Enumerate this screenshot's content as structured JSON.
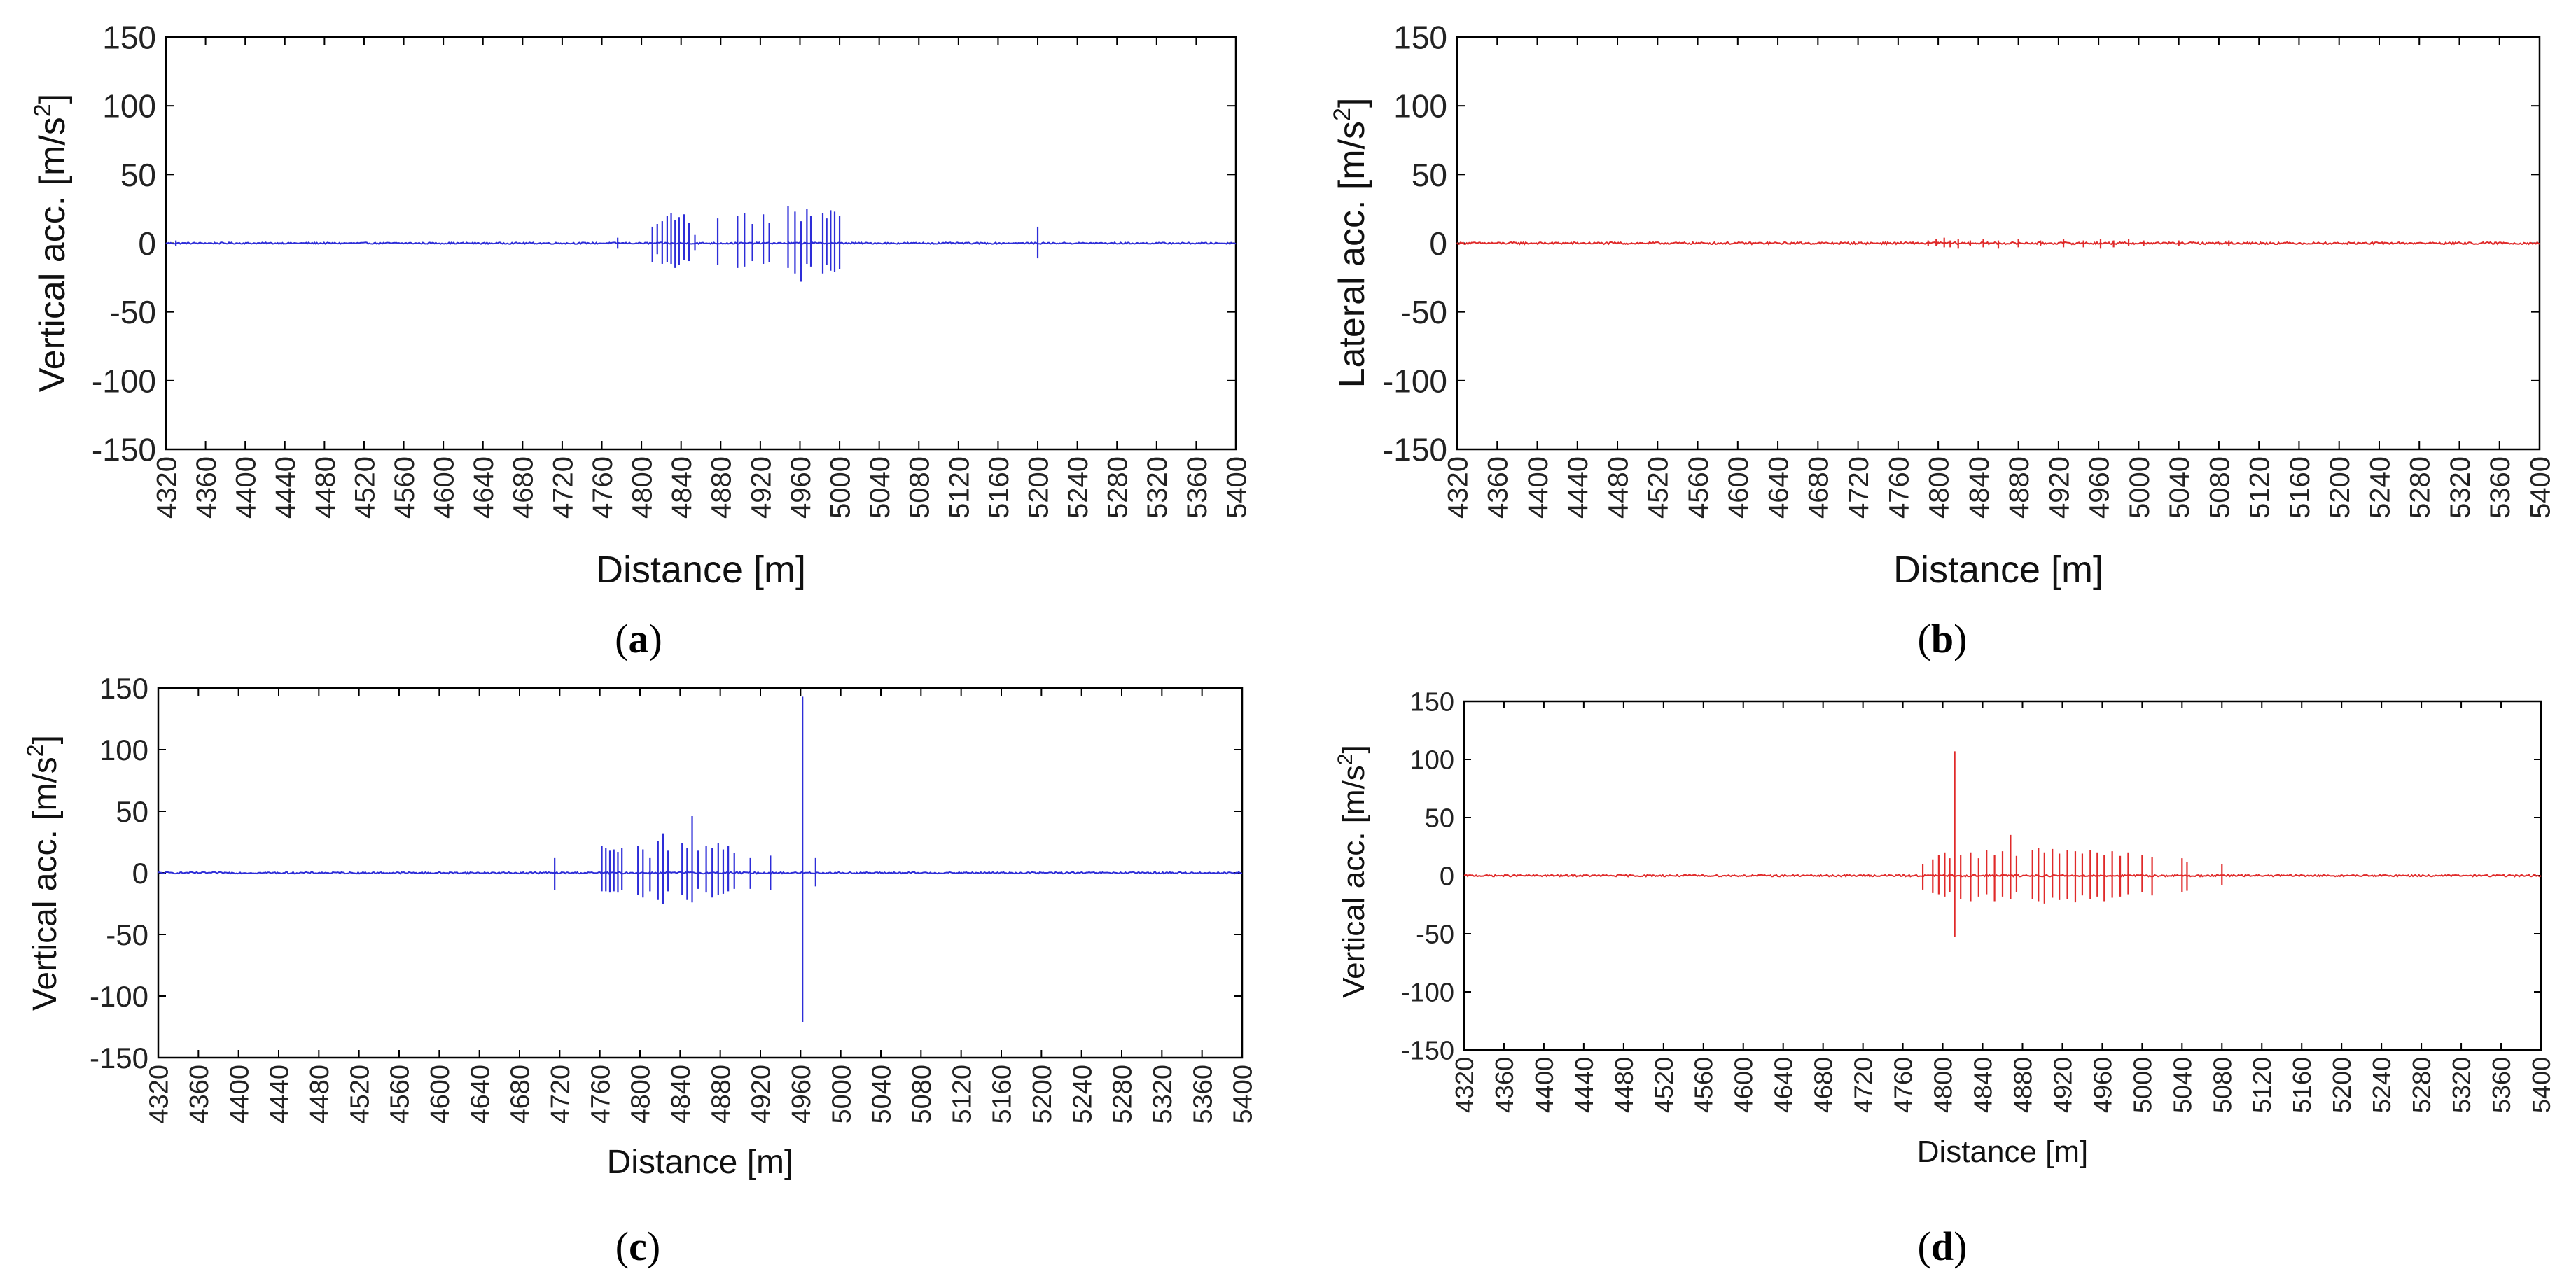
{
  "figure": {
    "panels": [
      "(a)",
      "(b)",
      "(c)",
      "(d)"
    ]
  },
  "chart_data": [
    {
      "id": "a",
      "type": "line",
      "panel_label": "(a)",
      "panel_letter": "a",
      "color": "#2d2dd8",
      "xlabel": "Distance [m]",
      "ylabel": "Vertical acc. [m/s2]",
      "ylabel_main": "Vertical acc. [m/s",
      "ylabel_sup": "2",
      "ylabel_end": "]",
      "xlim": [
        4320,
        5400
      ],
      "ylim": [
        -150,
        150
      ],
      "xticks": [
        "4320",
        "4360",
        "4400",
        "4440",
        "4480",
        "4520",
        "4560",
        "4600",
        "4640",
        "4680",
        "4720",
        "4760",
        "4800",
        "4840",
        "4880",
        "4920",
        "4960",
        "5000",
        "5040",
        "5080",
        "5120",
        "5160",
        "5200",
        "5240",
        "5280",
        "5320",
        "5360",
        "5400"
      ],
      "yticks": [
        "150",
        "100",
        "50",
        "0",
        "-50",
        "-100",
        "-150"
      ],
      "baseline_noise": 0.6,
      "spikes": [
        {
          "x": 4330,
          "max": 2,
          "min": -2
        },
        {
          "x": 4776,
          "max": 4,
          "min": -4
        },
        {
          "x": 4811,
          "max": 12,
          "min": -14
        },
        {
          "x": 4816,
          "max": 14,
          "min": -8
        },
        {
          "x": 4821,
          "max": 16,
          "min": -15
        },
        {
          "x": 4826,
          "max": 20,
          "min": -14
        },
        {
          "x": 4830,
          "max": 22,
          "min": -15
        },
        {
          "x": 4834,
          "max": 17,
          "min": -18
        },
        {
          "x": 4838,
          "max": 19,
          "min": -16
        },
        {
          "x": 4843,
          "max": 21,
          "min": -12
        },
        {
          "x": 4848,
          "max": 15,
          "min": -13
        },
        {
          "x": 4854,
          "max": 6,
          "min": -5
        },
        {
          "x": 4877,
          "max": 18,
          "min": -16
        },
        {
          "x": 4897,
          "max": 20,
          "min": -18
        },
        {
          "x": 4904,
          "max": 22,
          "min": -17
        },
        {
          "x": 4912,
          "max": 14,
          "min": -13
        },
        {
          "x": 4923,
          "max": 21,
          "min": -15
        },
        {
          "x": 4929,
          "max": 15,
          "min": -14
        },
        {
          "x": 4948,
          "max": 27,
          "min": -18
        },
        {
          "x": 4955,
          "max": 23,
          "min": -22
        },
        {
          "x": 4961,
          "max": 16,
          "min": -28
        },
        {
          "x": 4967,
          "max": 25,
          "min": -15
        },
        {
          "x": 4971,
          "max": 20,
          "min": -17
        },
        {
          "x": 4983,
          "max": 22,
          "min": -22
        },
        {
          "x": 4987,
          "max": 18,
          "min": -16
        },
        {
          "x": 4991,
          "max": 24,
          "min": -20
        },
        {
          "x": 4995,
          "max": 23,
          "min": -21
        },
        {
          "x": 5000,
          "max": 20,
          "min": -19
        },
        {
          "x": 5200,
          "max": 12,
          "min": -11
        }
      ]
    },
    {
      "id": "b",
      "type": "line",
      "panel_label": "(b)",
      "panel_letter": "b",
      "color": "#e02a2a",
      "xlabel": "Distance [m]",
      "ylabel": "Lateral acc. [m/s2]",
      "ylabel_main": "Lateral acc. [m/s",
      "ylabel_sup": "2",
      "ylabel_end": "]",
      "xlim": [
        4320,
        5400
      ],
      "ylim": [
        -150,
        150
      ],
      "xticks": [
        "4320",
        "4360",
        "4400",
        "4440",
        "4480",
        "4520",
        "4560",
        "4600",
        "4640",
        "4680",
        "4720",
        "4760",
        "4800",
        "4840",
        "4880",
        "4920",
        "4960",
        "5000",
        "5040",
        "5080",
        "5120",
        "5160",
        "5200",
        "5240",
        "5280",
        "5320",
        "5360",
        "5400"
      ],
      "yticks": [
        "150",
        "100",
        "50",
        "0",
        "-50",
        "-100",
        "-150"
      ],
      "baseline_noise": 0.8,
      "spikes": [
        {
          "x": 4790,
          "max": 2,
          "min": -2
        },
        {
          "x": 4798,
          "max": 3,
          "min": -2
        },
        {
          "x": 4806,
          "max": 4,
          "min": -3
        },
        {
          "x": 4812,
          "max": 2,
          "min": -3
        },
        {
          "x": 4820,
          "max": 3,
          "min": -4
        },
        {
          "x": 4832,
          "max": 2,
          "min": -2
        },
        {
          "x": 4845,
          "max": 3,
          "min": -3
        },
        {
          "x": 4860,
          "max": 2,
          "min": -4
        },
        {
          "x": 4880,
          "max": 3,
          "min": -3
        },
        {
          "x": 4902,
          "max": 2,
          "min": -2
        },
        {
          "x": 4925,
          "max": 3,
          "min": -3
        },
        {
          "x": 4945,
          "max": 2,
          "min": -3
        },
        {
          "x": 4962,
          "max": 3,
          "min": -4
        },
        {
          "x": 4975,
          "max": 2,
          "min": -3
        },
        {
          "x": 4990,
          "max": 3,
          "min": -2
        },
        {
          "x": 5005,
          "max": 2,
          "min": -2
        },
        {
          "x": 5040,
          "max": 2,
          "min": -2
        },
        {
          "x": 5090,
          "max": 2,
          "min": -2
        }
      ]
    },
    {
      "id": "c",
      "type": "line",
      "panel_label": "(c)",
      "panel_letter": "c",
      "color": "#2d2dd8",
      "xlabel": "Distance [m]",
      "ylabel": "Vertical acc. [m/s2]",
      "ylabel_main": "Vertical acc. [m/s",
      "ylabel_sup": "2",
      "ylabel_end": "]",
      "xlim": [
        4320,
        5400
      ],
      "ylim": [
        -150,
        150
      ],
      "xticks": [
        "4320",
        "4360",
        "4400",
        "4440",
        "4480",
        "4520",
        "4560",
        "4600",
        "4640",
        "4680",
        "4720",
        "4760",
        "4800",
        "4840",
        "4880",
        "4920",
        "4960",
        "5000",
        "5040",
        "5080",
        "5120",
        "5160",
        "5200",
        "5240",
        "5280",
        "5320",
        "5360",
        "5400"
      ],
      "yticks": [
        "150",
        "100",
        "50",
        "0",
        "-50",
        "-100",
        "-150"
      ],
      "baseline_noise": 0.7,
      "spikes": [
        {
          "x": 4715,
          "max": 12,
          "min": -14
        },
        {
          "x": 4762,
          "max": 22,
          "min": -15
        },
        {
          "x": 4766,
          "max": 20,
          "min": -15
        },
        {
          "x": 4770,
          "max": 18,
          "min": -16
        },
        {
          "x": 4774,
          "max": 19,
          "min": -15
        },
        {
          "x": 4778,
          "max": 17,
          "min": -16
        },
        {
          "x": 4782,
          "max": 20,
          "min": -14
        },
        {
          "x": 4798,
          "max": 22,
          "min": -18
        },
        {
          "x": 4803,
          "max": 19,
          "min": -20
        },
        {
          "x": 4810,
          "max": 12,
          "min": -15
        },
        {
          "x": 4818,
          "max": 26,
          "min": -22
        },
        {
          "x": 4823,
          "max": 32,
          "min": -25
        },
        {
          "x": 4828,
          "max": 18,
          "min": -15
        },
        {
          "x": 4842,
          "max": 24,
          "min": -18
        },
        {
          "x": 4847,
          "max": 20,
          "min": -22
        },
        {
          "x": 4852,
          "max": 46,
          "min": -24
        },
        {
          "x": 4858,
          "max": 18,
          "min": -13
        },
        {
          "x": 4866,
          "max": 22,
          "min": -16
        },
        {
          "x": 4872,
          "max": 20,
          "min": -20
        },
        {
          "x": 4878,
          "max": 24,
          "min": -18
        },
        {
          "x": 4883,
          "max": 19,
          "min": -17
        },
        {
          "x": 4888,
          "max": 22,
          "min": -15
        },
        {
          "x": 4894,
          "max": 16,
          "min": -13
        },
        {
          "x": 4910,
          "max": 12,
          "min": -13
        },
        {
          "x": 4930,
          "max": 14,
          "min": -14
        },
        {
          "x": 4962,
          "max": 143,
          "min": -121
        },
        {
          "x": 4975,
          "max": 12,
          "min": -11
        }
      ]
    },
    {
      "id": "d",
      "type": "line",
      "panel_label": "(d)",
      "panel_letter": "d",
      "color": "#e02a2a",
      "xlabel": "Distance [m]",
      "ylabel": "Vertical acc. [m/s2]",
      "ylabel_main": "Vertical acc. [m/s",
      "ylabel_sup": "2",
      "ylabel_end": "]",
      "xlim": [
        4320,
        5400
      ],
      "ylim": [
        -150,
        150
      ],
      "xticks": [
        "4320",
        "4360",
        "4400",
        "4440",
        "4480",
        "4520",
        "4560",
        "4600",
        "4640",
        "4680",
        "4720",
        "4760",
        "4800",
        "4840",
        "4880",
        "4920",
        "4960",
        "5000",
        "5040",
        "5080",
        "5120",
        "5160",
        "5200",
        "5240",
        "5280",
        "5320",
        "5360",
        "5400"
      ],
      "yticks": [
        "150",
        "100",
        "50",
        "0",
        "-50",
        "-100",
        "-150"
      ],
      "baseline_noise": 0.8,
      "spikes": [
        {
          "x": 4780,
          "max": 10,
          "min": -12
        },
        {
          "x": 4790,
          "max": 14,
          "min": -15
        },
        {
          "x": 4796,
          "max": 18,
          "min": -16
        },
        {
          "x": 4802,
          "max": 20,
          "min": -18
        },
        {
          "x": 4807,
          "max": 15,
          "min": -14
        },
        {
          "x": 4812,
          "max": 107,
          "min": -53
        },
        {
          "x": 4818,
          "max": 18,
          "min": -20
        },
        {
          "x": 4828,
          "max": 20,
          "min": -22
        },
        {
          "x": 4836,
          "max": 15,
          "min": -18
        },
        {
          "x": 4844,
          "max": 22,
          "min": -16
        },
        {
          "x": 4852,
          "max": 18,
          "min": -22
        },
        {
          "x": 4860,
          "max": 21,
          "min": -18
        },
        {
          "x": 4868,
          "max": 35,
          "min": -20
        },
        {
          "x": 4874,
          "max": 17,
          "min": -14
        },
        {
          "x": 4890,
          "max": 22,
          "min": -20
        },
        {
          "x": 4896,
          "max": 24,
          "min": -22
        },
        {
          "x": 4902,
          "max": 20,
          "min": -24
        },
        {
          "x": 4910,
          "max": 23,
          "min": -19
        },
        {
          "x": 4917,
          "max": 19,
          "min": -21
        },
        {
          "x": 4925,
          "max": 22,
          "min": -20
        },
        {
          "x": 4933,
          "max": 21,
          "min": -23
        },
        {
          "x": 4940,
          "max": 19,
          "min": -17
        },
        {
          "x": 4948,
          "max": 22,
          "min": -20
        },
        {
          "x": 4955,
          "max": 20,
          "min": -18
        },
        {
          "x": 4962,
          "max": 18,
          "min": -22
        },
        {
          "x": 4970,
          "max": 21,
          "min": -19
        },
        {
          "x": 4978,
          "max": 17,
          "min": -18
        },
        {
          "x": 4986,
          "max": 20,
          "min": -16
        },
        {
          "x": 5000,
          "max": 18,
          "min": -14
        },
        {
          "x": 5010,
          "max": 16,
          "min": -17
        },
        {
          "x": 5040,
          "max": 15,
          "min": -14
        },
        {
          "x": 5045,
          "max": 12,
          "min": -13
        },
        {
          "x": 5080,
          "max": 10,
          "min": -8
        }
      ]
    }
  ]
}
